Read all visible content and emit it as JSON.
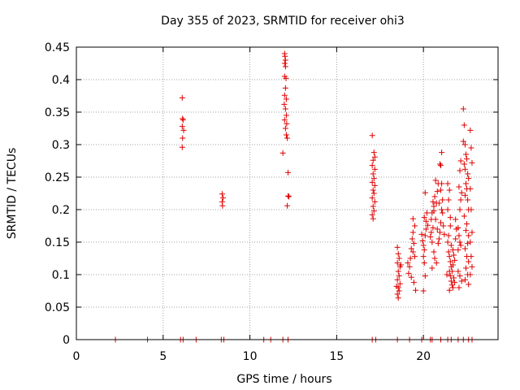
{
  "chart_data": {
    "type": "scatter",
    "title": "Day 355 of 2023, SRMTID for receiver ohi3",
    "xlabel": "GPS time / hours",
    "ylabel": "SRMTID / TECUs",
    "xlim": [
      0,
      24.3
    ],
    "ylim": [
      0,
      0.45
    ],
    "xticks": [
      0,
      5,
      10,
      15,
      20
    ],
    "xtick_labels": [
      "0",
      "5",
      "10",
      "15",
      "20"
    ],
    "yticks": [
      0,
      0.05,
      0.1,
      0.15,
      0.2,
      0.25,
      0.3,
      0.35,
      0.4,
      0.45
    ],
    "ytick_labels": [
      "0",
      "0.05",
      "0.1",
      "0.15",
      "0.2",
      "0.25",
      "0.3",
      "0.35",
      "0.4",
      "0.45"
    ],
    "grid": true,
    "marker": "plus",
    "color": "#e00000",
    "series": [
      {
        "name": "SRMTID",
        "points": [
          [
            2.25,
            0
          ],
          [
            4.1,
            0
          ],
          [
            6.0,
            0
          ],
          [
            6.15,
            0
          ],
          [
            6.9,
            0
          ],
          [
            8.35,
            0
          ],
          [
            8.5,
            0
          ],
          [
            10.8,
            0
          ],
          [
            11.2,
            0
          ],
          [
            11.9,
            0
          ],
          [
            12.2,
            0
          ],
          [
            17.05,
            0
          ],
          [
            17.25,
            0
          ],
          [
            18.5,
            0
          ],
          [
            19.2,
            0
          ],
          [
            19.9,
            0
          ],
          [
            20.4,
            0
          ],
          [
            20.5,
            0
          ],
          [
            21.0,
            0
          ],
          [
            21.4,
            0
          ],
          [
            21.6,
            0
          ],
          [
            22.0,
            0
          ],
          [
            22.3,
            0
          ],
          [
            22.6,
            0
          ],
          [
            22.8,
            0
          ],
          [
            6.1,
            0.372
          ],
          [
            6.12,
            0.34
          ],
          [
            6.15,
            0.338
          ],
          [
            6.1,
            0.328
          ],
          [
            6.18,
            0.322
          ],
          [
            6.12,
            0.31
          ],
          [
            6.1,
            0.296
          ],
          [
            8.4,
            0.224
          ],
          [
            8.45,
            0.218
          ],
          [
            8.4,
            0.212
          ],
          [
            8.42,
            0.206
          ],
          [
            12.0,
            0.44
          ],
          [
            12.02,
            0.436
          ],
          [
            12.05,
            0.43
          ],
          [
            12.0,
            0.425
          ],
          [
            12.05,
            0.42
          ],
          [
            12.0,
            0.405
          ],
          [
            12.08,
            0.402
          ],
          [
            12.05,
            0.387
          ],
          [
            12.0,
            0.376
          ],
          [
            12.1,
            0.37
          ],
          [
            11.98,
            0.362
          ],
          [
            12.05,
            0.355
          ],
          [
            12.1,
            0.345
          ],
          [
            12.0,
            0.338
          ],
          [
            12.12,
            0.332
          ],
          [
            12.05,
            0.325
          ],
          [
            12.1,
            0.315
          ],
          [
            12.15,
            0.31
          ],
          [
            11.9,
            0.287
          ],
          [
            12.2,
            0.257
          ],
          [
            12.2,
            0.221
          ],
          [
            12.25,
            0.22
          ],
          [
            12.15,
            0.206
          ],
          [
            17.05,
            0.314
          ],
          [
            17.15,
            0.288
          ],
          [
            17.2,
            0.281
          ],
          [
            17.1,
            0.276
          ],
          [
            17.05,
            0.268
          ],
          [
            17.2,
            0.262
          ],
          [
            17.1,
            0.255
          ],
          [
            17.15,
            0.248
          ],
          [
            17.05,
            0.242
          ],
          [
            17.2,
            0.237
          ],
          [
            17.1,
            0.23
          ],
          [
            17.15,
            0.225
          ],
          [
            17.05,
            0.218
          ],
          [
            17.2,
            0.212
          ],
          [
            17.1,
            0.205
          ],
          [
            17.15,
            0.198
          ],
          [
            17.05,
            0.192
          ],
          [
            17.1,
            0.186
          ],
          [
            18.5,
            0.142
          ],
          [
            18.55,
            0.132
          ],
          [
            18.6,
            0.125
          ],
          [
            18.5,
            0.118
          ],
          [
            18.65,
            0.112
          ],
          [
            18.55,
            0.105
          ],
          [
            18.6,
            0.098
          ],
          [
            18.5,
            0.092
          ],
          [
            18.65,
            0.086
          ],
          [
            18.55,
            0.08
          ],
          [
            18.6,
            0.075
          ],
          [
            18.5,
            0.07
          ],
          [
            18.55,
            0.064
          ],
          [
            18.7,
            0.115
          ],
          [
            18.45,
            0.082
          ],
          [
            19.1,
            0.118
          ],
          [
            19.2,
            0.112
          ],
          [
            19.15,
            0.102
          ],
          [
            19.25,
            0.125
          ],
          [
            19.3,
            0.14
          ],
          [
            19.35,
            0.155
          ],
          [
            19.4,
            0.165
          ],
          [
            19.45,
            0.148
          ],
          [
            19.5,
            0.175
          ],
          [
            19.4,
            0.135
          ],
          [
            19.5,
            0.128
          ],
          [
            19.3,
            0.096
          ],
          [
            19.45,
            0.088
          ],
          [
            19.55,
            0.076
          ],
          [
            19.4,
            0.186
          ],
          [
            19.9,
            0.162
          ],
          [
            19.95,
            0.152
          ],
          [
            20.0,
            0.145
          ],
          [
            20.05,
            0.138
          ],
          [
            20.1,
            0.16
          ],
          [
            20.15,
            0.17
          ],
          [
            20.0,
            0.128
          ],
          [
            20.05,
            0.118
          ],
          [
            20.1,
            0.098
          ],
          [
            20.0,
            0.075
          ],
          [
            20.15,
            0.182
          ],
          [
            20.2,
            0.195
          ],
          [
            20.1,
            0.226
          ],
          [
            20.25,
            0.176
          ],
          [
            20.05,
            0.188
          ],
          [
            20.4,
            0.158
          ],
          [
            20.45,
            0.165
          ],
          [
            20.5,
            0.15
          ],
          [
            20.55,
            0.172
          ],
          [
            20.45,
            0.185
          ],
          [
            20.5,
            0.195
          ],
          [
            20.6,
            0.205
          ],
          [
            20.55,
            0.212
          ],
          [
            20.65,
            0.22
          ],
          [
            20.6,
            0.198
          ],
          [
            20.7,
            0.185
          ],
          [
            20.75,
            0.21
          ],
          [
            20.8,
            0.228
          ],
          [
            20.85,
            0.24
          ],
          [
            20.7,
            0.245
          ],
          [
            20.8,
            0.17
          ],
          [
            20.9,
            0.155
          ],
          [
            20.85,
            0.148
          ],
          [
            20.95,
            0.165
          ],
          [
            21.0,
            0.18
          ],
          [
            21.05,
            0.2
          ],
          [
            21.1,
            0.215
          ],
          [
            21.0,
            0.23
          ],
          [
            21.05,
            0.24
          ],
          [
            20.95,
            0.27
          ],
          [
            21.0,
            0.268
          ],
          [
            21.05,
            0.288
          ],
          [
            21.1,
            0.195
          ],
          [
            21.15,
            0.175
          ],
          [
            21.2,
            0.162
          ],
          [
            20.6,
            0.135
          ],
          [
            20.65,
            0.125
          ],
          [
            20.75,
            0.118
          ],
          [
            20.5,
            0.11
          ],
          [
            20.9,
            0.21
          ],
          [
            21.4,
            0.15
          ],
          [
            21.45,
            0.135
          ],
          [
            21.5,
            0.128
          ],
          [
            21.55,
            0.12
          ],
          [
            21.6,
            0.112
          ],
          [
            21.5,
            0.105
          ],
          [
            21.55,
            0.098
          ],
          [
            21.6,
            0.09
          ],
          [
            21.65,
            0.084
          ],
          [
            21.7,
            0.08
          ],
          [
            21.5,
            0.076
          ],
          [
            21.45,
            0.16
          ],
          [
            21.55,
            0.175
          ],
          [
            21.6,
            0.145
          ],
          [
            21.7,
            0.138
          ],
          [
            21.75,
            0.13
          ],
          [
            21.8,
            0.122
          ],
          [
            21.7,
            0.115
          ],
          [
            21.65,
            0.105
          ],
          [
            21.75,
            0.095
          ],
          [
            21.8,
            0.088
          ],
          [
            21.85,
            0.185
          ],
          [
            21.9,
            0.17
          ],
          [
            21.85,
            0.155
          ],
          [
            21.4,
            0.2
          ],
          [
            21.45,
            0.215
          ],
          [
            21.5,
            0.23
          ],
          [
            21.4,
            0.24
          ],
          [
            21.55,
            0.188
          ],
          [
            21.35,
            0.1
          ],
          [
            22.0,
            0.172
          ],
          [
            22.05,
            0.16
          ],
          [
            22.1,
            0.15
          ],
          [
            22.15,
            0.145
          ],
          [
            22.0,
            0.138
          ],
          [
            22.1,
            0.2
          ],
          [
            22.15,
            0.215
          ],
          [
            22.2,
            0.226
          ],
          [
            22.05,
            0.235
          ],
          [
            22.1,
            0.26
          ],
          [
            22.15,
            0.275
          ],
          [
            22.0,
            0.105
          ],
          [
            22.1,
            0.098
          ],
          [
            22.2,
            0.09
          ],
          [
            22.05,
            0.08
          ],
          [
            22.3,
            0.355
          ],
          [
            22.35,
            0.33
          ],
          [
            22.3,
            0.305
          ],
          [
            22.4,
            0.3
          ],
          [
            22.45,
            0.285
          ],
          [
            22.5,
            0.278
          ],
          [
            22.35,
            0.27
          ],
          [
            22.4,
            0.262
          ],
          [
            22.55,
            0.255
          ],
          [
            22.6,
            0.248
          ],
          [
            22.45,
            0.24
          ],
          [
            22.5,
            0.232
          ],
          [
            22.4,
            0.222
          ],
          [
            22.55,
            0.215
          ],
          [
            22.6,
            0.2
          ],
          [
            22.35,
            0.19
          ],
          [
            22.5,
            0.178
          ],
          [
            22.45,
            0.168
          ],
          [
            22.6,
            0.16
          ],
          [
            22.55,
            0.148
          ],
          [
            22.4,
            0.14
          ],
          [
            22.5,
            0.128
          ],
          [
            22.6,
            0.12
          ],
          [
            22.45,
            0.11
          ],
          [
            22.55,
            0.1
          ],
          [
            22.4,
            0.092
          ],
          [
            22.6,
            0.085
          ],
          [
            22.7,
            0.322
          ],
          [
            22.75,
            0.295
          ],
          [
            22.8,
            0.272
          ],
          [
            22.7,
            0.232
          ],
          [
            22.75,
            0.2
          ],
          [
            22.8,
            0.165
          ],
          [
            22.7,
            0.15
          ],
          [
            22.75,
            0.128
          ],
          [
            22.8,
            0.112
          ],
          [
            22.7,
            0.1
          ]
        ]
      }
    ]
  }
}
